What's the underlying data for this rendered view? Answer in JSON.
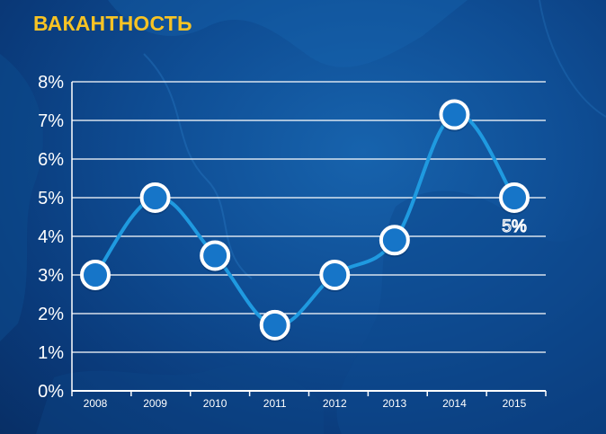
{
  "chart_data": {
    "type": "line",
    "title": "ВАКАНТНОСТЬ",
    "categories": [
      "2008",
      "2009",
      "2010",
      "2011",
      "2012",
      "2013",
      "2014",
      "2015"
    ],
    "series": [
      {
        "values": [
          3.0,
          5.0,
          3.5,
          1.7,
          3.0,
          3.9,
          7.15,
          5.0
        ]
      }
    ],
    "data_labels": [
      {
        "category": "2015",
        "text": "5%"
      }
    ],
    "yticks": [
      "0%",
      "1%",
      "2%",
      "3%",
      "4%",
      "5%",
      "6%",
      "7%",
      "8%"
    ],
    "ylim": [
      0,
      8
    ],
    "grid": true,
    "legend": "none",
    "colors": {
      "line": "#1f9ae0",
      "marker_fill": "#1675c8",
      "marker_stroke": "#ffffff",
      "title": "#f7c324",
      "grid": "#ffffff"
    }
  }
}
